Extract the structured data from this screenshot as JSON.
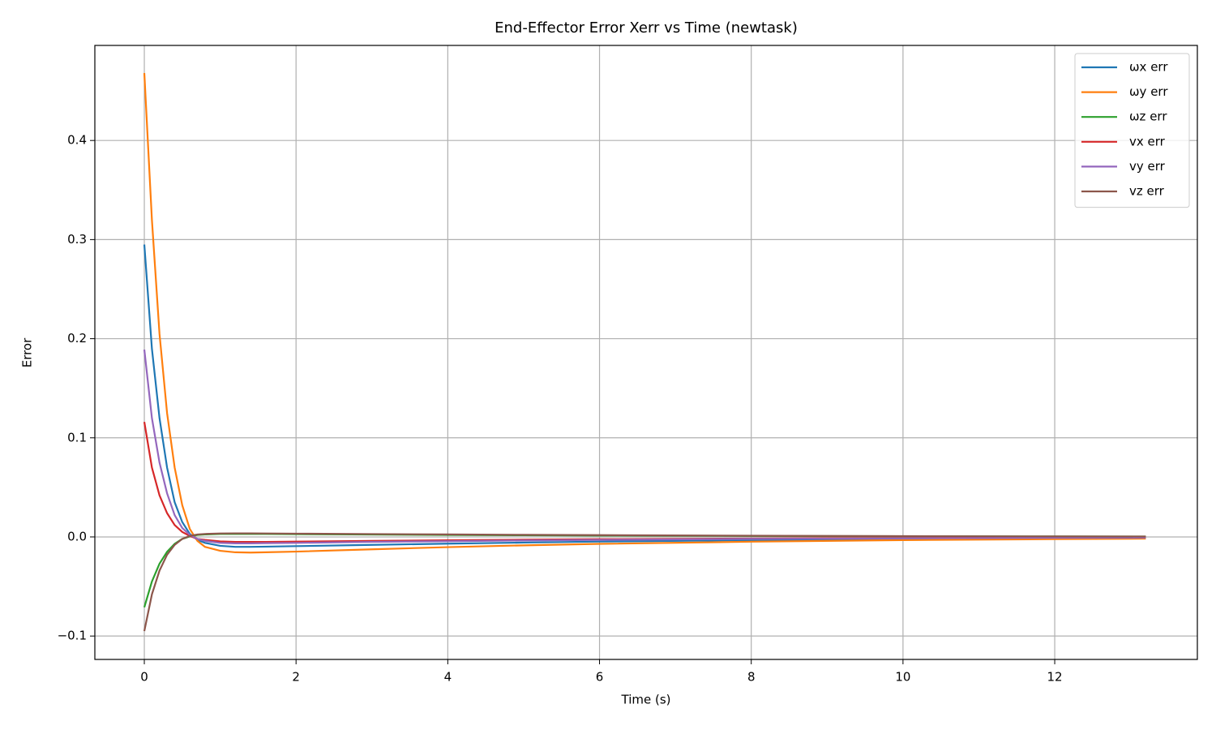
{
  "chart_data": {
    "type": "line",
    "title": "End-Effector Error Xerr vs Time  (newtask)",
    "x_label": "Time (s)",
    "y_label": "Error",
    "x": [
      0,
      0.1,
      0.2,
      0.3,
      0.4,
      0.5,
      0.6,
      0.7,
      0.8,
      1.0,
      1.2,
      1.4,
      1.6,
      2,
      3,
      4,
      5,
      6,
      8,
      10,
      12,
      13.2
    ],
    "series": [
      {
        "name": "ωx err",
        "color": "#1f77b4",
        "values": [
          0.295,
          0.19,
          0.12,
          0.07,
          0.035,
          0.015,
          0.003,
          -0.003,
          -0.006,
          -0.009,
          -0.01,
          -0.01,
          -0.0098,
          -0.0093,
          -0.008,
          -0.0068,
          -0.0057,
          -0.0047,
          -0.0032,
          -0.0021,
          -0.0014,
          -0.0011
        ]
      },
      {
        "name": "ωy err",
        "color": "#ff7f0e",
        "values": [
          0.468,
          0.32,
          0.205,
          0.125,
          0.07,
          0.032,
          0.008,
          -0.004,
          -0.01,
          -0.014,
          -0.0155,
          -0.0158,
          -0.0155,
          -0.0148,
          -0.0125,
          -0.0103,
          -0.0085,
          -0.007,
          -0.0048,
          -0.0032,
          -0.0022,
          -0.0017
        ]
      },
      {
        "name": "ωz err",
        "color": "#2ca02c",
        "values": [
          -0.071,
          -0.045,
          -0.027,
          -0.015,
          -0.007,
          -0.002,
          0.0005,
          0.002,
          0.0025,
          0.003,
          0.003,
          0.003,
          0.003,
          0.0028,
          0.0024,
          0.002,
          0.0017,
          0.0014,
          0.001,
          0.0007,
          0.0005,
          0.0004
        ]
      },
      {
        "name": "vx err",
        "color": "#d62728",
        "values": [
          0.116,
          0.07,
          0.042,
          0.024,
          0.012,
          0.005,
          0.001,
          -0.002,
          -0.003,
          -0.0045,
          -0.005,
          -0.005,
          -0.005,
          -0.0047,
          -0.004,
          -0.0034,
          -0.0028,
          -0.0023,
          -0.0016,
          -0.0011,
          -0.0007,
          -0.0005
        ]
      },
      {
        "name": "vy err",
        "color": "#9467bd",
        "values": [
          0.189,
          0.12,
          0.075,
          0.044,
          0.022,
          0.009,
          0.002,
          -0.002,
          -0.004,
          -0.006,
          -0.0065,
          -0.0065,
          -0.0063,
          -0.006,
          -0.005,
          -0.0043,
          -0.0036,
          -0.003,
          -0.002,
          -0.0014,
          -0.0009,
          -0.0007
        ]
      },
      {
        "name": "vz err",
        "color": "#8c564b",
        "values": [
          -0.095,
          -0.058,
          -0.034,
          -0.018,
          -0.008,
          -0.002,
          0.001,
          0.0025,
          0.003,
          0.0035,
          0.0036,
          0.0036,
          0.0035,
          0.0033,
          0.0029,
          0.0025,
          0.0021,
          0.0018,
          0.0012,
          0.0008,
          0.0005,
          0.0004
        ]
      }
    ],
    "xlim": [
      -0.652,
      13.88
    ],
    "ylim": [
      -0.1236,
      0.4959
    ],
    "xticks": [
      0,
      2,
      4,
      6,
      8,
      10,
      12
    ],
    "yticks": [
      {
        "value": -0.1,
        "label": "−0.1"
      },
      {
        "value": 0,
        "label": "0.0"
      },
      0.1,
      0.2,
      0.3,
      0.4
    ],
    "grid": true,
    "legend_loc": "upper right"
  }
}
